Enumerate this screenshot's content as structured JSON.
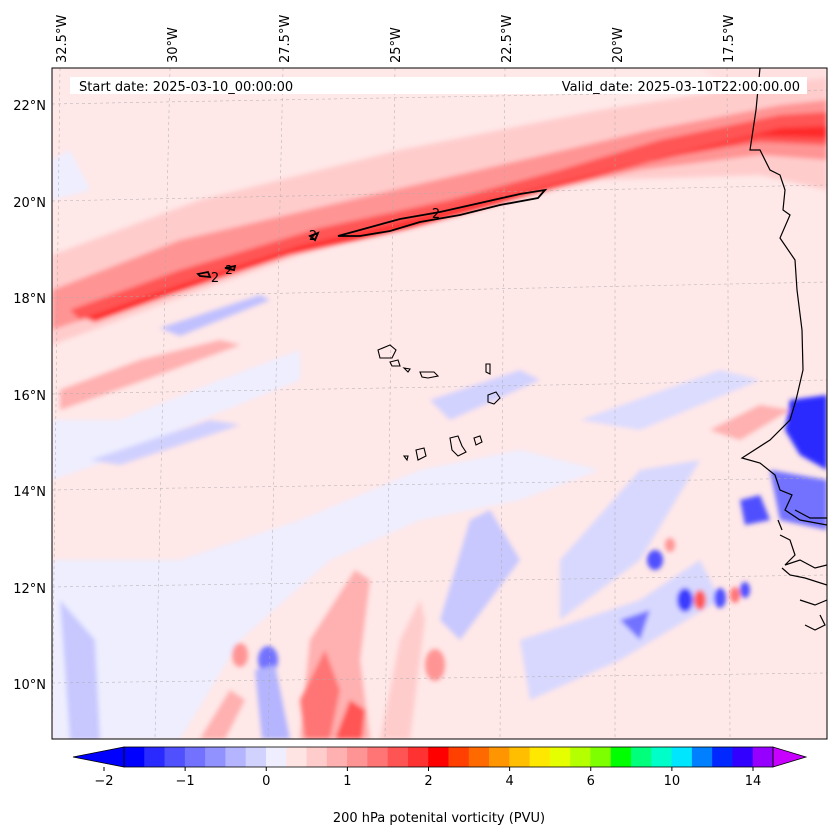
{
  "map": {
    "start_label": "Start date: 2025-03-10_00:00:00",
    "valid_label": "Valid_date: 2025-03-10T22:00:00.00",
    "longitude_labels": [
      "32.5°W",
      "30°W",
      "27.5°W",
      "25°W",
      "22.5°W",
      "20°W",
      "17.5°W"
    ],
    "latitude_labels": [
      "22°N",
      "20°N",
      "18°N",
      "16°N",
      "14°N",
      "12°N",
      "10°N"
    ],
    "contour_label": "2",
    "extent": {
      "lon_west": -32.6,
      "lon_east": -15.3,
      "lat_south": 8.9,
      "lat_north": 22.8
    }
  },
  "colorbar": {
    "title": "200 hPa potenital vorticity (PVU)",
    "tick_labels": [
      "−2",
      "−1",
      "0",
      "1",
      "2",
      "4",
      "6",
      "10",
      "14"
    ],
    "colors": [
      "#0000ff",
      "#2a2aff",
      "#5050ff",
      "#7272ff",
      "#9292ff",
      "#b4b4ff",
      "#d2d2ff",
      "#eeeeff",
      "#ffe4e4",
      "#ffcccc",
      "#ffb0b0",
      "#ff9494",
      "#ff7474",
      "#ff5454",
      "#ff3232",
      "#ff0000",
      "#ff4000",
      "#ff6a00",
      "#ff9500",
      "#ffbf00",
      "#ffe800",
      "#e6ff00",
      "#b4ff00",
      "#7dff00",
      "#00ff00",
      "#00ff7a",
      "#00ffc8",
      "#00e6ff",
      "#0080ff",
      "#0028ff",
      "#3200ff",
      "#9600ff"
    ],
    "under_color": "#0000ff",
    "over_color": "#c800ff"
  }
}
